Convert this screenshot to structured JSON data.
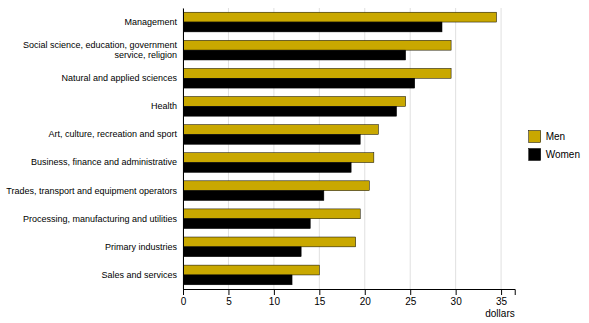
{
  "chart_data": {
    "type": "bar",
    "orientation": "horizontal",
    "categories": [
      "Sales and services",
      "Primary industries",
      "Processing, manufacturing and utilities",
      "Trades, transport and equipment operators",
      "Business, finance and administrative",
      "Art, culture, recreation and sport",
      "Health",
      "Natural and applied sciences",
      "Social science, education, government\nservice, religion",
      "Management"
    ],
    "series": [
      {
        "name": "Men",
        "color": "#C9A800",
        "values": [
          15,
          19,
          19.5,
          20.5,
          21,
          21.5,
          24.5,
          29.5,
          29.5,
          34.5
        ]
      },
      {
        "name": "Women",
        "color": "#000000",
        "values": [
          12,
          13,
          14,
          15.5,
          18.5,
          19.5,
          23.5,
          25.5,
          24.5,
          28.5
        ]
      }
    ],
    "xlabel": "dollars",
    "xlim": [
      0,
      36.5
    ],
    "xticks": [
      0,
      5,
      10,
      15,
      20,
      25,
      30,
      35
    ],
    "grid": true,
    "legend": "right"
  }
}
